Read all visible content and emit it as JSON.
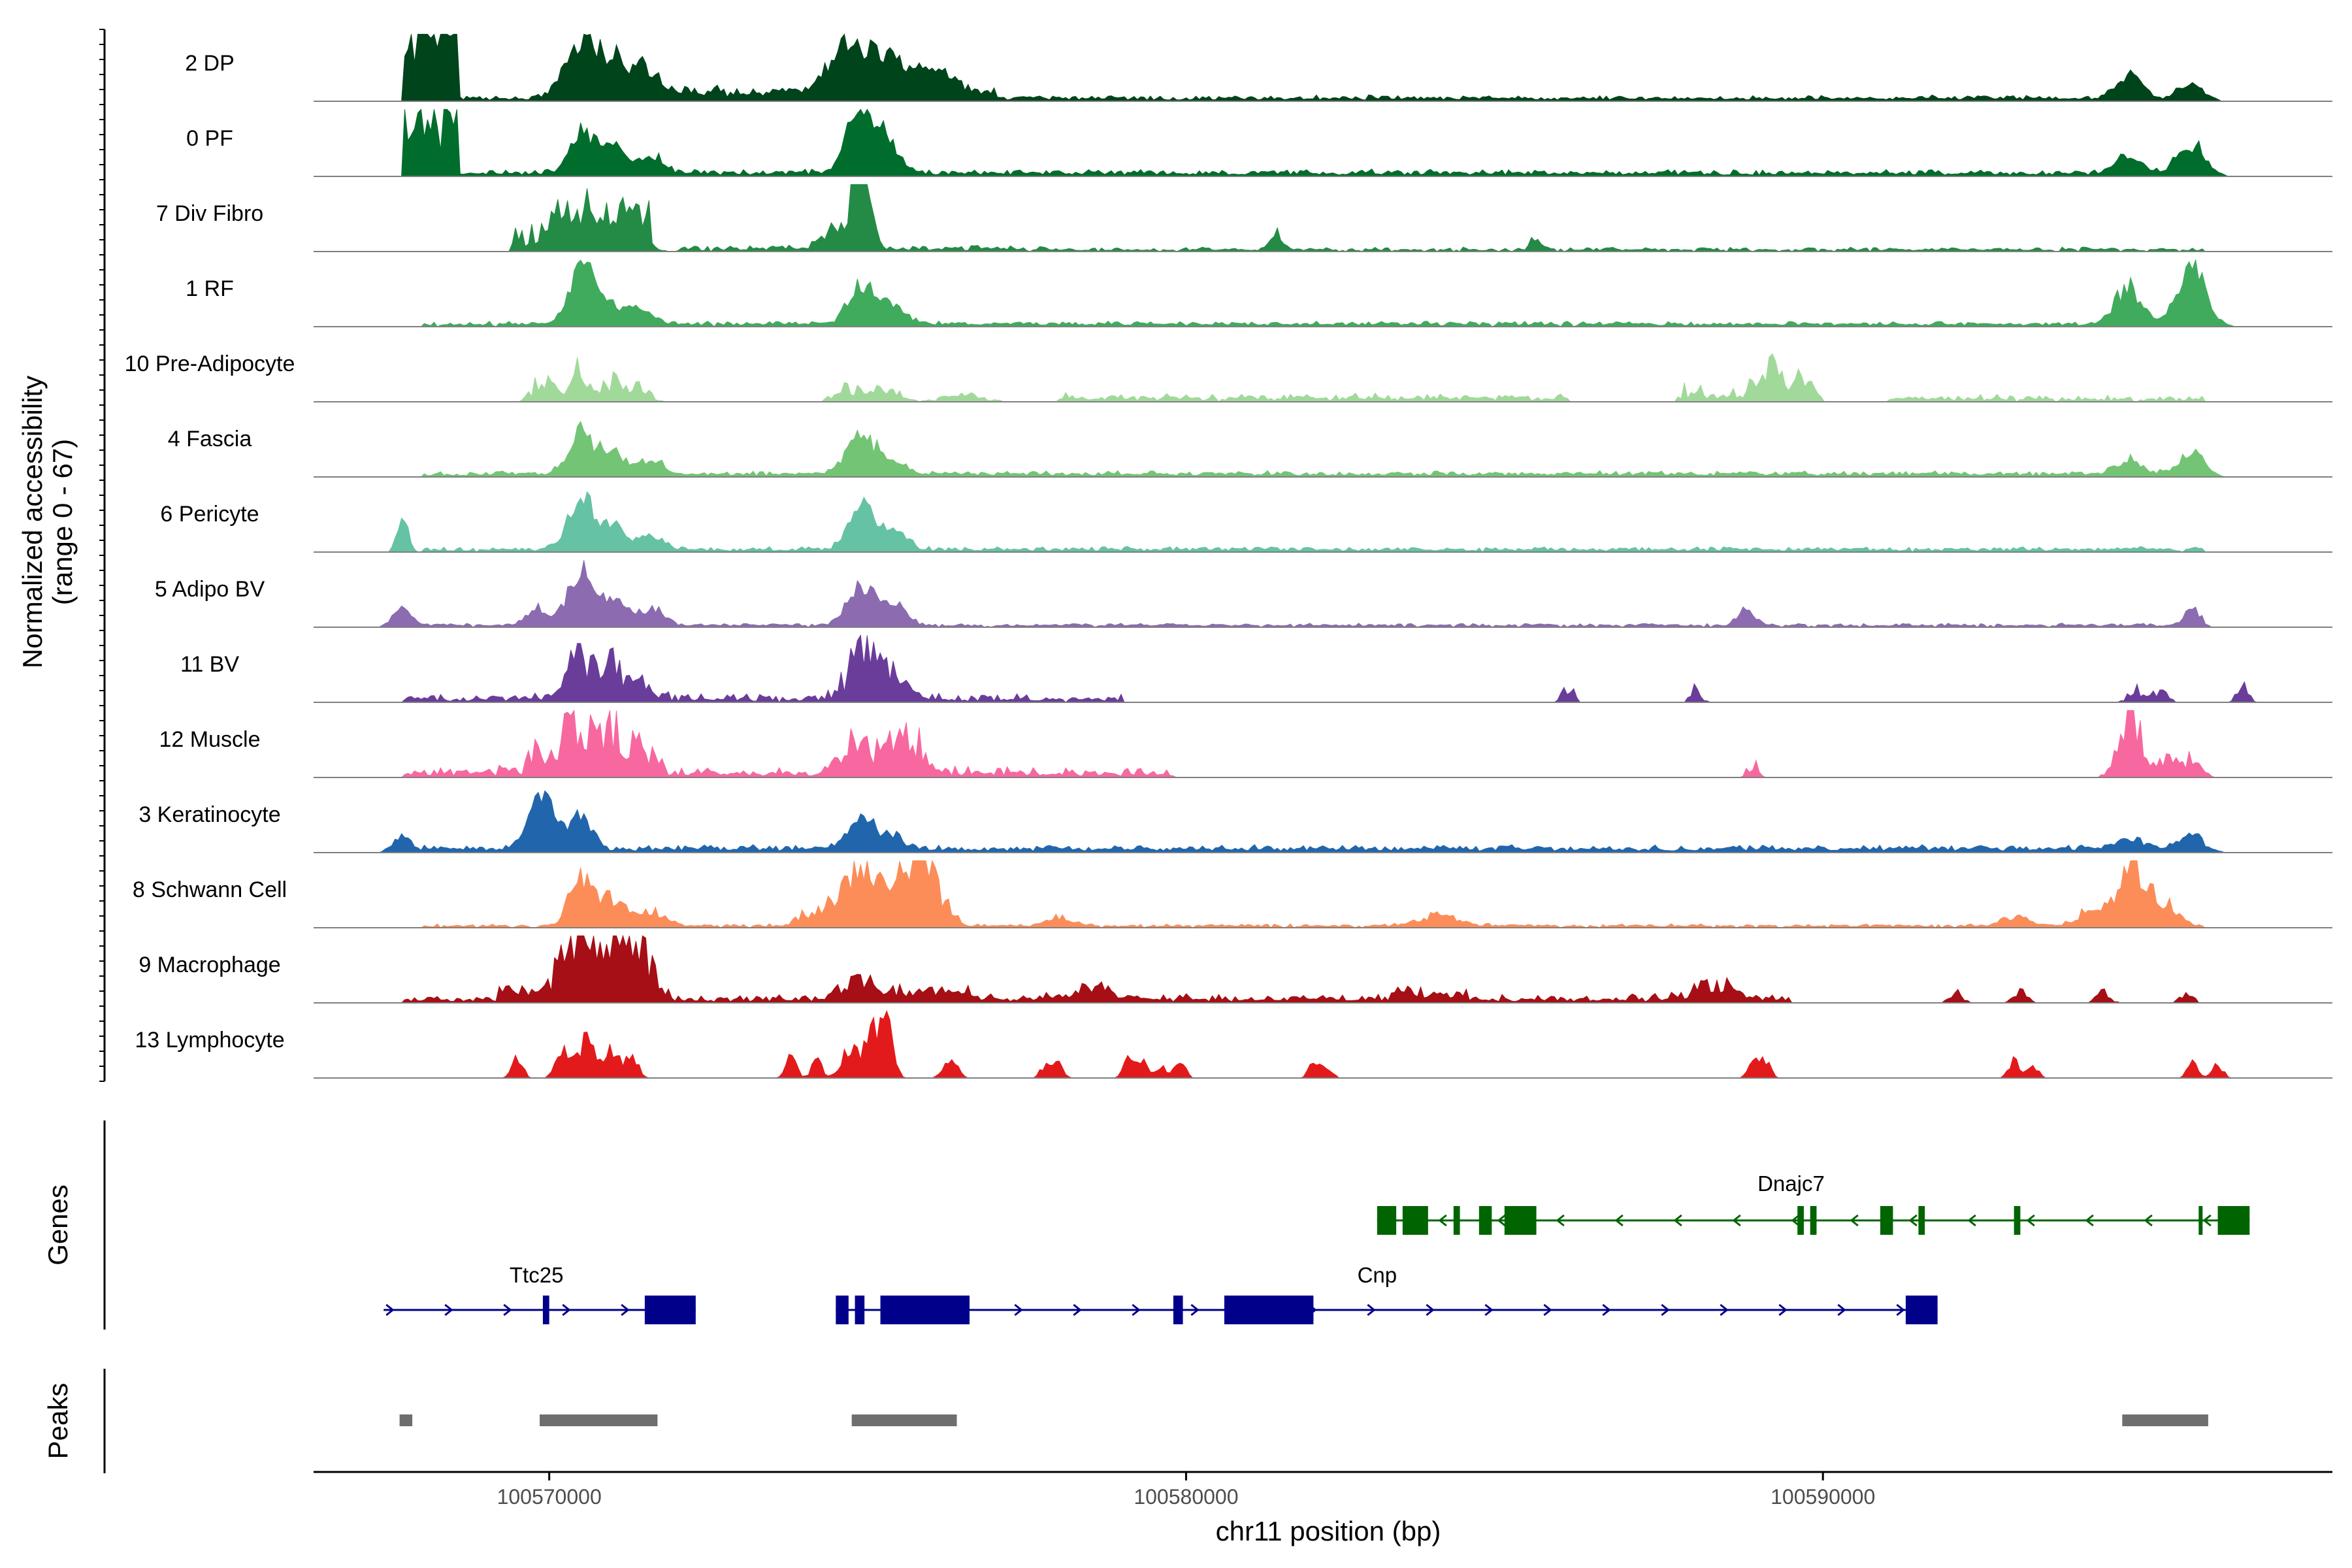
{
  "chart_data": {
    "type": "area",
    "title": "",
    "ylabel_lines": [
      "Normalized accessibility",
      "(range 0 - 67)"
    ],
    "xlabel": "chr11 position (bp)",
    "xlim": [
      100566300,
      100598000
    ],
    "ylim": [
      0,
      67
    ],
    "x_ticks": [
      100570000,
      100580000,
      100590000
    ],
    "x_tick_labels": [
      "100570000",
      "100580000",
      "100590000"
    ],
    "tracks": [
      {
        "name": "2 DP",
        "color": "#00441b",
        "noise": 1.0,
        "peaks": [
          [
            100567700,
            100568600,
            1.5
          ],
          [
            100570500,
            0.9,
            250
          ],
          [
            100571000,
            0.45,
            200
          ],
          [
            100571500,
            0.35,
            200
          ],
          [
            100574700,
            0.75,
            300
          ],
          [
            100575300,
            0.45,
            200
          ],
          [
            100575800,
            0.35,
            200
          ],
          [
            100576200,
            0.25,
            200
          ],
          [
            100571000,
            100577000,
            0.15
          ],
          [
            100594800,
            0.35,
            200
          ],
          [
            100595800,
            0.2,
            200
          ],
          [
            100568000,
            100596000,
            0.08
          ]
        ]
      },
      {
        "name": "0 PF",
        "color": "#006d2c",
        "noise": 1.0,
        "peaks": [
          [
            100567700,
            100568600,
            1.5
          ],
          [
            100570500,
            0.65,
            180
          ],
          [
            100571000,
            0.4,
            200
          ],
          [
            100571600,
            0.25,
            200
          ],
          [
            100574900,
            1.05,
            200
          ],
          [
            100575300,
            0.45,
            200
          ],
          [
            100568000,
            100596000,
            0.09
          ],
          [
            100594800,
            0.25,
            200
          ],
          [
            100595800,
            0.4,
            220
          ]
        ]
      },
      {
        "name": "7 Div Fibro",
        "color": "#238b45",
        "noise": 1.6,
        "peaks": [
          [
            100569400,
            100570200,
            0.4
          ],
          [
            100570000,
            100571600,
            0.45
          ],
          [
            100570500,
            0.35,
            300
          ],
          [
            100571300,
            0.35,
            200
          ],
          [
            100574500,
            0.3,
            200
          ],
          [
            100574900,
            1.9,
            120
          ],
          [
            100572000,
            100578000,
            0.08
          ],
          [
            100578000,
            100596000,
            0.05
          ],
          [
            100581400,
            0.25,
            80
          ],
          [
            100585500,
            0.2,
            80
          ]
        ]
      },
      {
        "name": "1 RF",
        "color": "#41ab5d",
        "noise": 1.0,
        "peaks": [
          [
            100570500,
            0.85,
            180
          ],
          [
            100570900,
            0.3,
            200
          ],
          [
            100571400,
            0.25,
            200
          ],
          [
            100574900,
            0.6,
            200
          ],
          [
            100575400,
            0.25,
            200
          ],
          [
            100568000,
            100596000,
            0.07
          ],
          [
            100594800,
            0.55,
            200
          ],
          [
            100595800,
            0.85,
            220
          ]
        ]
      },
      {
        "name": "10 Pre-Adipocyte",
        "color": "#a1d99b",
        "noise": 2.2,
        "peaks": [
          [
            100569900,
            0.35,
            150
          ],
          [
            100570500,
            0.55,
            150
          ],
          [
            100571000,
            0.3,
            150
          ],
          [
            100571400,
            0.25,
            150
          ],
          [
            100574700,
            0.2,
            200
          ],
          [
            100575300,
            0.2,
            200
          ],
          [
            100576500,
            0.1,
            300
          ],
          [
            100578000,
            100586000,
            0.1
          ],
          [
            100587700,
            100590000,
            0.2
          ],
          [
            100589100,
            0.35,
            150
          ],
          [
            100589600,
            0.35,
            150
          ],
          [
            100591000,
            100596000,
            0.08
          ]
        ]
      },
      {
        "name": "4 Fascia",
        "color": "#74c476",
        "noise": 1.0,
        "peaks": [
          [
            100570500,
            0.6,
            200
          ],
          [
            100571000,
            0.3,
            200
          ],
          [
            100571600,
            0.2,
            200
          ],
          [
            100574900,
            0.55,
            220
          ],
          [
            100575400,
            0.2,
            200
          ],
          [
            100568000,
            100596000,
            0.08
          ],
          [
            100594800,
            0.2,
            200
          ],
          [
            100595800,
            0.3,
            200
          ]
        ]
      },
      {
        "name": "6 Pericyte",
        "color": "#66c2a4",
        "noise": 1.0,
        "peaks": [
          [
            100567700,
            0.6,
            80
          ],
          [
            100570500,
            0.75,
            200
          ],
          [
            100571000,
            0.35,
            200
          ],
          [
            100571600,
            0.2,
            200
          ],
          [
            100574900,
            0.65,
            200
          ],
          [
            100575400,
            0.25,
            200
          ],
          [
            100568000,
            100596000,
            0.07
          ]
        ]
      },
      {
        "name": "5 Adipo BV",
        "color": "#8c6bb1",
        "noise": 1.0,
        "peaks": [
          [
            100567700,
            0.3,
            150
          ],
          [
            100569800,
            0.25,
            150
          ],
          [
            100570500,
            0.85,
            200
          ],
          [
            100571000,
            0.35,
            200
          ],
          [
            100571600,
            0.25,
            200
          ],
          [
            100574900,
            0.55,
            220
          ],
          [
            100575400,
            0.3,
            200
          ],
          [
            100568000,
            100596000,
            0.05
          ],
          [
            100588800,
            0.25,
            120
          ],
          [
            100595800,
            0.25,
            120
          ]
        ]
      },
      {
        "name": "11 BV",
        "color": "#6a3d9a",
        "noise": 2.4,
        "peaks": [
          [
            100570500,
            0.75,
            180
          ],
          [
            100571000,
            0.45,
            200
          ],
          [
            100571500,
            0.2,
            200
          ],
          [
            100574900,
            0.8,
            200
          ],
          [
            100575400,
            0.35,
            200
          ],
          [
            100567700,
            100579000,
            0.1
          ],
          [
            100586000,
            0.25,
            80
          ],
          [
            100588000,
            0.2,
            80
          ],
          [
            100594900,
            0.25,
            100
          ],
          [
            100595300,
            0.2,
            100
          ],
          [
            100596600,
            0.3,
            80
          ]
        ]
      },
      {
        "name": "12 Muscle",
        "color": "#f768a1",
        "noise": 2.4,
        "peaks": [
          [
            100569600,
            100570400,
            0.35
          ],
          [
            100570500,
            0.65,
            200
          ],
          [
            100571000,
            0.5,
            200
          ],
          [
            100571400,
            0.45,
            200
          ],
          [
            100574800,
            0.55,
            200
          ],
          [
            100575400,
            0.4,
            250
          ],
          [
            100575800,
            0.25,
            200
          ],
          [
            100567700,
            100579800,
            0.12
          ],
          [
            100588900,
            0.2,
            80
          ],
          [
            100594700,
            0.3,
            150
          ],
          [
            100594900,
            0.65,
            150
          ],
          [
            100595400,
            0.25,
            150
          ],
          [
            100595800,
            0.25,
            150
          ]
        ]
      },
      {
        "name": "3 Keratinocyte",
        "color": "#2166ac",
        "noise": 1.0,
        "peaks": [
          [
            100567700,
            0.25,
            150
          ],
          [
            100569900,
            0.75,
            220
          ],
          [
            100570500,
            0.5,
            160
          ],
          [
            100574900,
            0.4,
            220
          ],
          [
            100575400,
            0.15,
            200
          ],
          [
            100568000,
            100596000,
            0.1
          ],
          [
            100594800,
            0.15,
            200
          ],
          [
            100595800,
            0.2,
            200
          ]
        ]
      },
      {
        "name": "8 Schwann Cell",
        "color": "#fc8d59",
        "noise": 1.3,
        "peaks": [
          [
            100570500,
            0.7,
            180
          ],
          [
            100571000,
            0.4,
            200
          ],
          [
            100571600,
            0.2,
            200
          ],
          [
            100574600,
            0.35,
            300
          ],
          [
            100575000,
            0.7,
            220
          ],
          [
            100575500,
            0.55,
            200
          ],
          [
            100575900,
            0.9,
            200
          ],
          [
            100573800,
            100576500,
            0.15
          ],
          [
            100568000,
            100596000,
            0.05
          ],
          [
            100578000,
            0.15,
            200
          ],
          [
            100584000,
            0.15,
            300
          ],
          [
            100593000,
            0.15,
            200
          ],
          [
            100594300,
            0.3,
            250
          ],
          [
            100594900,
            0.85,
            200
          ],
          [
            100595400,
            0.3,
            200
          ]
        ]
      },
      {
        "name": "9 Macrophage",
        "color": "#a50f15",
        "noise": 2.0,
        "peaks": [
          [
            100569200,
            100570200,
            0.2
          ],
          [
            100570400,
            0.9,
            200
          ],
          [
            100570700,
            0.5,
            200
          ],
          [
            100571100,
            0.6,
            200
          ],
          [
            100571400,
            0.8,
            200
          ],
          [
            100574500,
            100576600,
            0.15
          ],
          [
            100574900,
            0.2,
            300
          ],
          [
            100567700,
            100589500,
            0.1
          ],
          [
            100578500,
            0.15,
            300
          ],
          [
            100583200,
            100584400,
            0.15
          ],
          [
            100588300,
            0.2,
            300
          ],
          [
            100592100,
            0.15,
            100
          ],
          [
            100593100,
            0.15,
            100
          ],
          [
            100594400,
            0.15,
            100
          ],
          [
            100595700,
            0.15,
            100
          ]
        ]
      },
      {
        "name": "13 Lymphocyte",
        "color": "#e31a1c",
        "noise": 1.4,
        "peaks": [
          [
            100569500,
            0.3,
            80
          ],
          [
            100570200,
            0.4,
            100
          ],
          [
            100570600,
            0.55,
            150
          ],
          [
            100571000,
            0.4,
            100
          ],
          [
            100571300,
            0.3,
            100
          ],
          [
            100573800,
            0.3,
            80
          ],
          [
            100574200,
            0.25,
            80
          ],
          [
            100574700,
            0.4,
            120
          ],
          [
            100575100,
            0.7,
            150
          ],
          [
            100575300,
            0.6,
            100
          ],
          [
            100576300,
            0.3,
            100
          ],
          [
            100577800,
            0.2,
            80
          ],
          [
            100578000,
            0.2,
            80
          ],
          [
            100579100,
            0.25,
            80
          ],
          [
            100579300,
            0.25,
            80
          ],
          [
            100579600,
            0.2,
            80
          ],
          [
            100579900,
            0.25,
            80
          ],
          [
            100582000,
            0.2,
            80
          ],
          [
            100582200,
            0.2,
            80
          ],
          [
            100588900,
            0.25,
            80
          ],
          [
            100589100,
            0.25,
            80
          ],
          [
            100593000,
            0.25,
            80
          ],
          [
            100593300,
            0.2,
            80
          ],
          [
            100595800,
            0.25,
            80
          ],
          [
            100596200,
            0.2,
            80
          ]
        ]
      }
    ],
    "genes_label": "Genes",
    "genes": [
      {
        "name": "Dnajc7",
        "color": "#006400",
        "strand": "-",
        "start": 100583000,
        "end": 100596700,
        "exons": [
          [
            100583000,
            100583300
          ],
          [
            100583400,
            100583800
          ],
          [
            100584200,
            100584300
          ],
          [
            100584600,
            100584800
          ],
          [
            100585000,
            100585500
          ],
          [
            100589600,
            100589700
          ],
          [
            100589800,
            100589900
          ],
          [
            100590900,
            100591100
          ],
          [
            100591500,
            100591600
          ],
          [
            100593000,
            100593100
          ],
          [
            100595900,
            100595950
          ],
          [
            100596200,
            100596700
          ]
        ]
      },
      {
        "name": "Ttc25",
        "color": "#00008b",
        "strand": "+",
        "start": 100567400,
        "end": 100572300,
        "exons": [
          [
            100569900,
            100570000
          ],
          [
            100571500,
            100572300
          ]
        ]
      },
      {
        "name": "Cnp",
        "color": "#00008b",
        "strand": "+",
        "start": 100574500,
        "end": 100591800,
        "exons": [
          [
            100574500,
            100574700
          ],
          [
            100574800,
            100574950
          ],
          [
            100575200,
            100576600
          ],
          [
            100579800,
            100579950
          ],
          [
            100580600,
            100582000
          ],
          [
            100591300,
            100591800
          ]
        ]
      }
    ],
    "peaks_label": "Peaks",
    "peaks": [
      [
        100567650,
        100567850
      ],
      [
        100569850,
        100571700
      ],
      [
        100574750,
        100576400
      ],
      [
        100594700,
        100596050
      ]
    ]
  }
}
